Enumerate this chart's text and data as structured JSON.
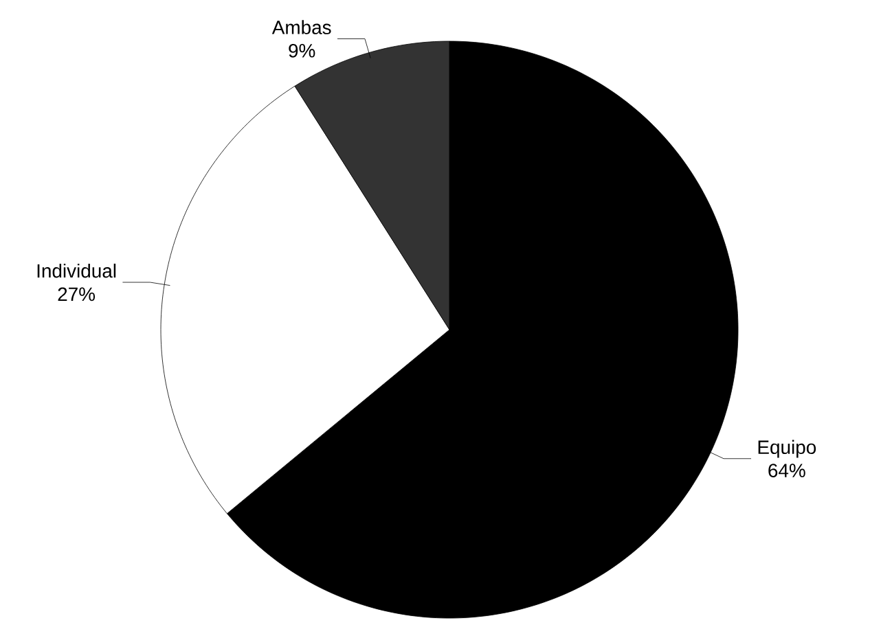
{
  "chart_data": {
    "type": "pie",
    "categories": [
      "Equipo",
      "Individual",
      "Ambas"
    ],
    "values": [
      64,
      27,
      9
    ],
    "colors": [
      "#000000",
      "#ffffff",
      "#333333"
    ],
    "value_labels": [
      "64%",
      "27%",
      "9%"
    ]
  }
}
